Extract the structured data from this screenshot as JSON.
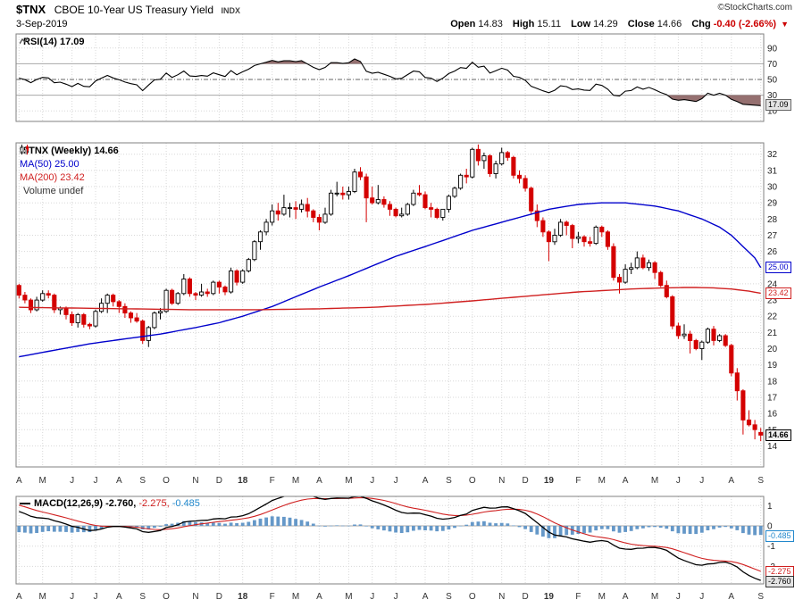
{
  "header": {
    "symbol": "$TNX",
    "title": "CBOE 10-Year US Treasury Yield",
    "exchange": "INDX",
    "credit": "©StockCharts.com",
    "date": "3-Sep-2019",
    "quote": {
      "open_label": "Open",
      "open": "14.83",
      "high_label": "High",
      "high": "15.11",
      "low_label": "Low",
      "low": "14.29",
      "close_label": "Close",
      "close": "14.66",
      "chg_label": "Chg",
      "chg": "-0.40 (-2.66%)",
      "arrow": "▼"
    }
  },
  "legends": {
    "rsi": "RSI(14) 17.09",
    "main_symbol": "$TNX (Weekly) 14.66",
    "ma50": "MA(50) 25.00",
    "ma200": "MA(200) 23.42",
    "volume": "Volume undef",
    "macd_main": "MACD(12,26,9) -2.760,",
    "macd_signal": "-2.275,",
    "macd_hist": "-0.485"
  },
  "boxes": {
    "rsi": "17.09",
    "ma50": "25.00",
    "ma200": "23.42",
    "close": "14.66",
    "hist": "-0.485",
    "signal": "-2.275",
    "macd": "-2.760"
  },
  "colors": {
    "candle_up": "#000000",
    "candle_down": "#d40000",
    "ma50": "#0000cc",
    "ma200": "#d02020",
    "macd_line": "#000000",
    "signal_line": "#d02020",
    "hist_fill": "#6598c8",
    "rsi_line": "#000000",
    "band_fill": "#8a6060",
    "grid": "#d8d8d8",
    "border": "#808080",
    "chg_red": "#cc0000"
  },
  "chart_data": {
    "type": "candlestick",
    "symbol": "$TNX",
    "timeframe": "weekly",
    "ylim": [
      12.7,
      32.7
    ],
    "yticks": [
      32,
      31,
      30,
      29,
      28,
      27,
      26,
      25,
      24,
      23,
      22,
      21,
      20,
      19,
      18,
      17,
      16,
      15,
      14
    ],
    "x_ticks": [
      [
        "A",
        0
      ],
      [
        "M",
        4
      ],
      [
        "J",
        9
      ],
      [
        "J",
        13
      ],
      [
        "A",
        17
      ],
      [
        "S",
        21
      ],
      [
        "O",
        25
      ],
      [
        "N",
        30
      ],
      [
        "D",
        34
      ],
      [
        "18",
        38
      ],
      [
        "F",
        43
      ],
      [
        "M",
        47
      ],
      [
        "A",
        51
      ],
      [
        "M",
        56
      ],
      [
        "J",
        60
      ],
      [
        "J",
        64
      ],
      [
        "A",
        69
      ],
      [
        "S",
        73
      ],
      [
        "O",
        77
      ],
      [
        "N",
        82
      ],
      [
        "D",
        86
      ],
      [
        "19",
        90
      ],
      [
        "F",
        95
      ],
      [
        "M",
        99
      ],
      [
        "A",
        103
      ],
      [
        "M",
        108
      ],
      [
        "J",
        112
      ],
      [
        "J",
        116
      ],
      [
        "A",
        121
      ],
      [
        "S",
        126
      ]
    ],
    "candles": [
      [
        23.9,
        24,
        23.1,
        23.3
      ],
      [
        23.3,
        23.5,
        22.8,
        23
      ],
      [
        23,
        23.1,
        22.2,
        22.4
      ],
      [
        22.4,
        23.2,
        22.3,
        23
      ],
      [
        23,
        23.6,
        22.9,
        23.4
      ],
      [
        23.4,
        23.6,
        23.1,
        23.3
      ],
      [
        23.3,
        23.4,
        22.2,
        22.4
      ],
      [
        22.4,
        22.6,
        22.1,
        22.5
      ],
      [
        22.5,
        22.6,
        21.8,
        22.1
      ],
      [
        22.1,
        22.3,
        21.4,
        21.6
      ],
      [
        21.6,
        22.2,
        21.3,
        22.1
      ],
      [
        22.1,
        22.2,
        21.3,
        21.5
      ],
      [
        21.5,
        21.6,
        21.2,
        21.4
      ],
      [
        21.4,
        22.4,
        21.3,
        22.3
      ],
      [
        22.3,
        23.1,
        22.2,
        22.8
      ],
      [
        22.8,
        23.4,
        22.2,
        23.3
      ],
      [
        23.3,
        23.4,
        22.6,
        22.9
      ],
      [
        22.9,
        23,
        22.2,
        22.6
      ],
      [
        22.6,
        22.8,
        21.9,
        22.2
      ],
      [
        22.2,
        22.3,
        21.6,
        21.9
      ],
      [
        21.9,
        22.2,
        21.6,
        21.7
      ],
      [
        21.7,
        21.8,
        20.3,
        20.5
      ],
      [
        20.5,
        21.4,
        20.1,
        21.3
      ],
      [
        21.3,
        22.3,
        21.2,
        22.2
      ],
      [
        22.2,
        22.5,
        21.8,
        22.3
      ],
      [
        22.3,
        23.7,
        22.2,
        23.6
      ],
      [
        23.6,
        23.7,
        22.7,
        22.8
      ],
      [
        22.8,
        23.5,
        22.7,
        23.4
      ],
      [
        23.4,
        24.6,
        23.3,
        24.3
      ],
      [
        24.3,
        24.4,
        23.2,
        23.4
      ],
      [
        23.4,
        23.5,
        23,
        23.3
      ],
      [
        23.3,
        24,
        23.2,
        23.5
      ],
      [
        23.5,
        23.7,
        23.2,
        23.4
      ],
      [
        23.4,
        24.2,
        23.3,
        24.1
      ],
      [
        24.1,
        24.2,
        23.4,
        23.8
      ],
      [
        23.8,
        23.9,
        23.3,
        23.5
      ],
      [
        23.5,
        25,
        23.4,
        24.8
      ],
      [
        24.8,
        24.9,
        23.9,
        24.1
      ],
      [
        24.1,
        24.9,
        24,
        24.8
      ],
      [
        24.8,
        25.6,
        24.7,
        25.5
      ],
      [
        25.5,
        26.7,
        25.4,
        26.6
      ],
      [
        26.6,
        27.3,
        26.1,
        27.2
      ],
      [
        27.2,
        28,
        27,
        27.8
      ],
      [
        27.8,
        28.9,
        27.6,
        28.5
      ],
      [
        28.5,
        29,
        27.9,
        28.3
      ],
      [
        28.3,
        29.5,
        28.2,
        28.7
      ],
      [
        28.7,
        29,
        28.1,
        28.7
      ],
      [
        28.7,
        29.1,
        28,
        28.6
      ],
      [
        28.6,
        29.2,
        28.4,
        28.9
      ],
      [
        28.9,
        29.3,
        28.1,
        28.5
      ],
      [
        28.5,
        28.6,
        27.8,
        28.1
      ],
      [
        28.1,
        28.3,
        27.3,
        27.8
      ],
      [
        27.8,
        28.7,
        27.7,
        28.3
      ],
      [
        28.3,
        29.8,
        28.2,
        29.6
      ],
      [
        29.6,
        30.3,
        29.4,
        29.6
      ],
      [
        29.6,
        30,
        29.2,
        29.5
      ],
      [
        29.5,
        30,
        29.2,
        29.7
      ],
      [
        29.7,
        31.1,
        29.6,
        30.9
      ],
      [
        30.9,
        31.2,
        30.4,
        30.6
      ],
      [
        30.6,
        30.8,
        27.8,
        29.3
      ],
      [
        29.3,
        30,
        28.9,
        29
      ],
      [
        29,
        30.1,
        28.9,
        29.2
      ],
      [
        29.2,
        29.4,
        28.7,
        28.9
      ],
      [
        28.9,
        29.1,
        28.2,
        28.6
      ],
      [
        28.6,
        28.7,
        28.1,
        28.2
      ],
      [
        28.2,
        28.7,
        28.1,
        28.3
      ],
      [
        28.3,
        29,
        28.2,
        28.9
      ],
      [
        28.9,
        29.8,
        28.8,
        29.6
      ],
      [
        29.6,
        30.1,
        29.4,
        29.5
      ],
      [
        29.5,
        29.7,
        28.6,
        28.7
      ],
      [
        28.7,
        29,
        28.1,
        28.6
      ],
      [
        28.6,
        28.7,
        28,
        28.1
      ],
      [
        28.1,
        28.6,
        27.9,
        28.6
      ],
      [
        28.6,
        29.5,
        28.4,
        29.4
      ],
      [
        29.4,
        30,
        29.3,
        29.9
      ],
      [
        29.9,
        30.8,
        29.8,
        30.7
      ],
      [
        30.7,
        31.1,
        30.2,
        30.6
      ],
      [
        30.6,
        32.4,
        30.5,
        32.3
      ],
      [
        32.3,
        32.6,
        31.3,
        31.6
      ],
      [
        31.6,
        32.1,
        31.1,
        31.9
      ],
      [
        31.9,
        32,
        30.6,
        30.8
      ],
      [
        30.8,
        31.6,
        30.5,
        31.4
      ],
      [
        31.4,
        32.4,
        31.3,
        32.1
      ],
      [
        32.1,
        32.2,
        31.6,
        31.8
      ],
      [
        31.8,
        31.9,
        30.5,
        30.7
      ],
      [
        30.7,
        31,
        30.2,
        30.5
      ],
      [
        30.5,
        30.7,
        29.7,
        29.9
      ],
      [
        29.9,
        30,
        28.3,
        28.5
      ],
      [
        28.5,
        28.9,
        27.5,
        27.9
      ],
      [
        27.9,
        28.1,
        26.9,
        27.2
      ],
      [
        27.2,
        27.3,
        25.4,
        26.6
      ],
      [
        26.6,
        27.4,
        26.4,
        27
      ],
      [
        27,
        28,
        26.9,
        27.8
      ],
      [
        27.8,
        27.9,
        27,
        27.6
      ],
      [
        27.6,
        27.7,
        26.2,
        26.8
      ],
      [
        26.8,
        27.2,
        26.5,
        26.9
      ],
      [
        26.9,
        27,
        26.3,
        26.6
      ],
      [
        26.6,
        26.9,
        26.3,
        26.5
      ],
      [
        26.5,
        27.6,
        26.4,
        27.5
      ],
      [
        27.5,
        27.6,
        26.9,
        27.2
      ],
      [
        27.2,
        27.3,
        26.1,
        26.3
      ],
      [
        26.3,
        26.5,
        24.2,
        24.4
      ],
      [
        24.4,
        24.6,
        23.4,
        24.1
      ],
      [
        24.1,
        25.2,
        24,
        24.9
      ],
      [
        24.9,
        25.3,
        24.6,
        25
      ],
      [
        25,
        26,
        24.9,
        25.6
      ],
      [
        25.6,
        25.8,
        24.9,
        25
      ],
      [
        25,
        25.5,
        24.8,
        25.3
      ],
      [
        25.3,
        25.4,
        24.3,
        24.7
      ],
      [
        24.7,
        24.8,
        23.8,
        23.9
      ],
      [
        23.9,
        24.2,
        23.1,
        23.2
      ],
      [
        23.2,
        23.3,
        21.2,
        21.4
      ],
      [
        21.4,
        21.6,
        20.6,
        20.8
      ],
      [
        20.8,
        21.5,
        20.6,
        20.9
      ],
      [
        20.9,
        21.1,
        19.7,
        20.5
      ],
      [
        20.5,
        20.6,
        19.9,
        20
      ],
      [
        20,
        20.5,
        19.3,
        20.4
      ],
      [
        20.4,
        21.3,
        20.3,
        21.2
      ],
      [
        21.2,
        21.4,
        20.2,
        20.5
      ],
      [
        20.5,
        20.9,
        20.4,
        20.8
      ],
      [
        20.8,
        20.9,
        20.1,
        20.2
      ],
      [
        20.2,
        20.3,
        18.3,
        18.5
      ],
      [
        18.5,
        18.8,
        16.8,
        17.4
      ],
      [
        17.4,
        17.5,
        14.7,
        15.6
      ],
      [
        15.6,
        16.2,
        15.2,
        15.3
      ],
      [
        15.3,
        15.6,
        14.4,
        15
      ],
      [
        14.83,
        15.11,
        14.29,
        14.66
      ]
    ],
    "overlays": {
      "ma50": {
        "name": "MA(50)",
        "last": 25.0,
        "points": [
          [
            0,
            19.5
          ],
          [
            6,
            19.9
          ],
          [
            12,
            20.3
          ],
          [
            18,
            20.6
          ],
          [
            24,
            20.9
          ],
          [
            30,
            21.3
          ],
          [
            34,
            21.6
          ],
          [
            38,
            22.0
          ],
          [
            43,
            22.6
          ],
          [
            47,
            23.2
          ],
          [
            51,
            23.8
          ],
          [
            56,
            24.5
          ],
          [
            60,
            25.1
          ],
          [
            64,
            25.7
          ],
          [
            69,
            26.3
          ],
          [
            73,
            26.8
          ],
          [
            77,
            27.3
          ],
          [
            82,
            27.8
          ],
          [
            86,
            28.2
          ],
          [
            90,
            28.6
          ],
          [
            95,
            28.9
          ],
          [
            99,
            29.0
          ],
          [
            103,
            29.0
          ],
          [
            108,
            28.8
          ],
          [
            112,
            28.5
          ],
          [
            116,
            28.0
          ],
          [
            119,
            27.5
          ],
          [
            121,
            27.0
          ],
          [
            123,
            26.3
          ],
          [
            125,
            25.6
          ],
          [
            126,
            25.0
          ]
        ]
      },
      "ma200": {
        "name": "MA(200)",
        "last": 23.42,
        "points": [
          [
            0,
            22.55
          ],
          [
            10,
            22.5
          ],
          [
            20,
            22.45
          ],
          [
            30,
            22.4
          ],
          [
            40,
            22.4
          ],
          [
            50,
            22.45
          ],
          [
            60,
            22.55
          ],
          [
            70,
            22.75
          ],
          [
            77,
            22.95
          ],
          [
            85,
            23.2
          ],
          [
            90,
            23.35
          ],
          [
            95,
            23.5
          ],
          [
            100,
            23.6
          ],
          [
            105,
            23.7
          ],
          [
            110,
            23.75
          ],
          [
            114,
            23.78
          ],
          [
            118,
            23.75
          ],
          [
            121,
            23.68
          ],
          [
            124,
            23.55
          ],
          [
            126,
            23.42
          ]
        ]
      }
    },
    "indicators": {
      "rsi": {
        "name": "RSI(14)",
        "period": 14,
        "last": 17.09,
        "ylim": [
          0,
          100
        ],
        "yticks": [
          90,
          70,
          50,
          30,
          10
        ],
        "overbought": 70,
        "mid": 50,
        "oversold": 30,
        "seed_gain": 0.3,
        "seed_loss": 0.28
      },
      "macd": {
        "name": "MACD(12,26,9)",
        "params": [
          12,
          26,
          9
        ],
        "last_macd": -2.76,
        "last_signal": -2.275,
        "last_hist": -0.485,
        "yticks": [
          1,
          0,
          -1,
          -2
        ],
        "seed_ema12": 23.7,
        "seed_ema26": 22.9,
        "seed_signal": 1.1
      }
    }
  }
}
